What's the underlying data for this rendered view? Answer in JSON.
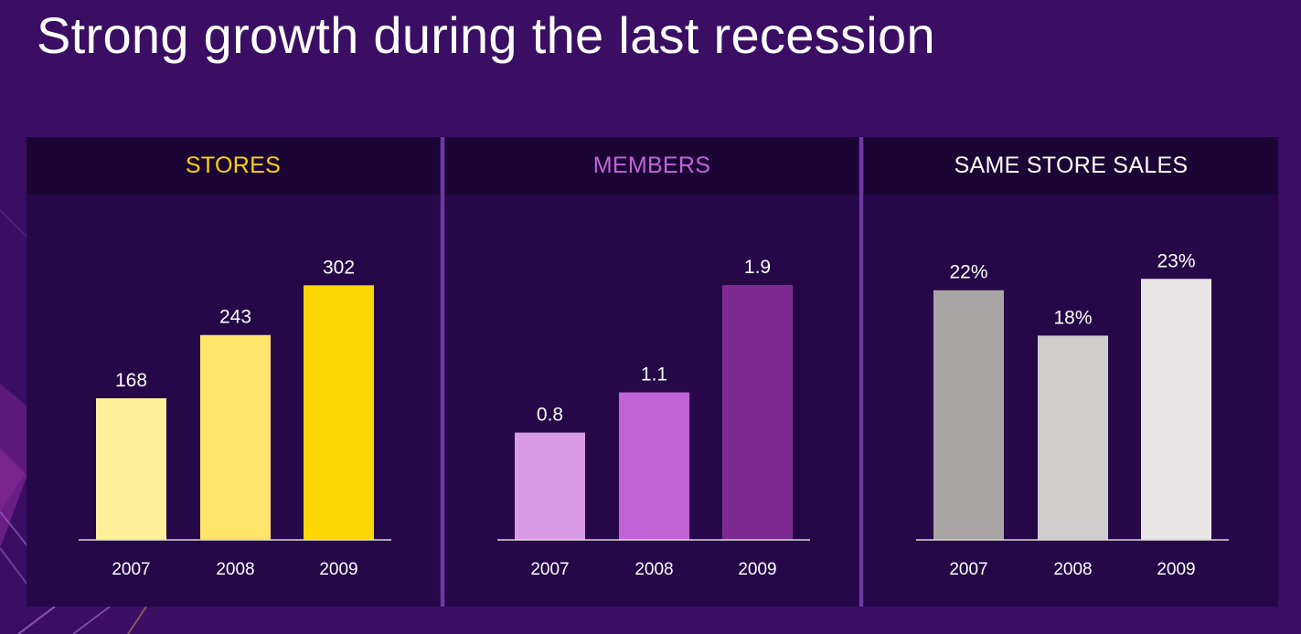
{
  "slide": {
    "title": "Strong growth during the last recession"
  },
  "chart_data": [
    {
      "type": "bar",
      "title": "STORES",
      "title_color": "#f9d406",
      "categories": [
        "2007",
        "2008",
        "2009"
      ],
      "values": [
        168,
        243,
        302
      ],
      "value_labels": [
        "168",
        "243",
        "302"
      ],
      "bar_colors": [
        "#fff19b",
        "#ffe46a",
        "#fcd703"
      ],
      "ylim": [
        0,
        350
      ],
      "grid": false
    },
    {
      "type": "bar",
      "title": "MEMBERS",
      "title_color": "#c264d8",
      "categories": [
        "2007",
        "2008",
        "2009"
      ],
      "values": [
        0.8,
        1.1,
        1.9
      ],
      "value_labels": [
        "0.8",
        "1.1",
        "1.9"
      ],
      "bar_colors": [
        "#d99be3",
        "#c263d7",
        "#7d2a90"
      ],
      "ylim": [
        0,
        2.2
      ],
      "grid": false
    },
    {
      "type": "bar",
      "title": "SAME STORE SALES",
      "title_color": "#ffffff",
      "categories": [
        "2007",
        "2008",
        "2009"
      ],
      "values": [
        22,
        18,
        23
      ],
      "value_labels": [
        "22%",
        "18%",
        "23%"
      ],
      "bar_colors": [
        "#a9a5a4",
        "#d0cdcd",
        "#e8e6e6"
      ],
      "ylim": [
        0,
        26
      ],
      "grid": false
    }
  ]
}
